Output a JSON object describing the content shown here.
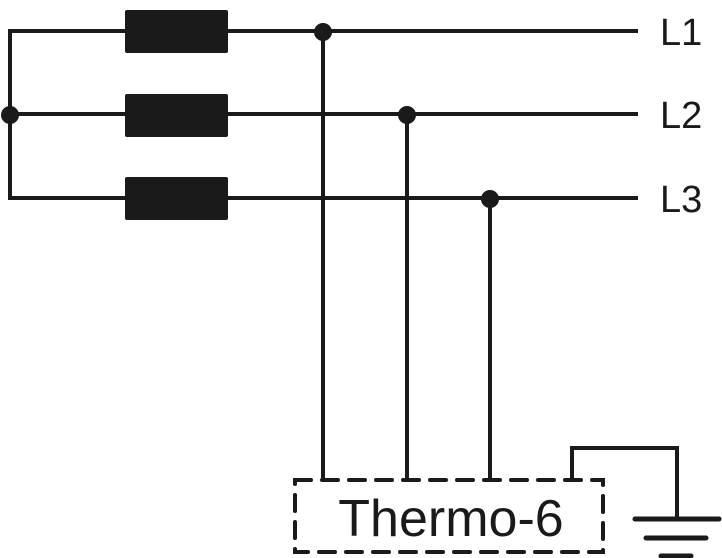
{
  "diagram": {
    "lines": [
      {
        "label": "L1"
      },
      {
        "label": "L2"
      },
      {
        "label": "L3"
      }
    ],
    "device_label": "Thermo-6",
    "colors": {
      "stroke": "#1a1a1a",
      "background": "#ffffff"
    },
    "symbols": [
      "resistor",
      "resistor",
      "resistor",
      "junction-dot",
      "ground-icon",
      "dashed-device-box"
    ]
  }
}
